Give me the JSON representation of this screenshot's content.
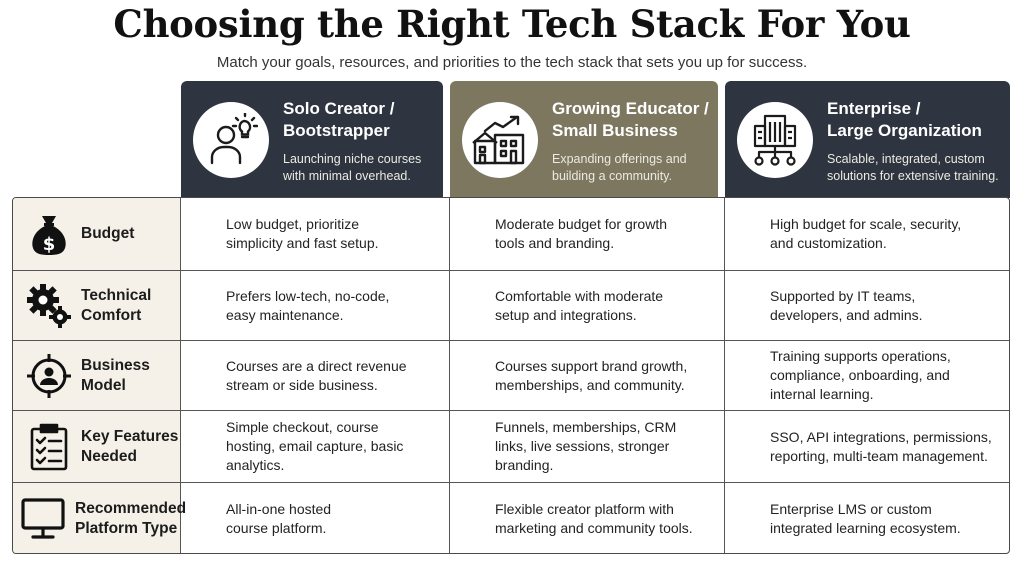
{
  "title": "Choosing the Right Tech Stack For You",
  "subtitle": "Match your goals, resources, and priorities to the tech stack that sets you up for success.",
  "colors": {
    "header_dark": "#2e3540",
    "header_olive": "#7d7760",
    "label_bg": "#f5f1e8"
  },
  "columns": [
    {
      "icon": "person-lightbulb-icon",
      "title": "Solo Creator /\nBootstrapper",
      "desc": "Launching niche courses\nwith minimal overhead."
    },
    {
      "icon": "buildings-growth-icon",
      "title": "Growing Educator /\nSmall Business",
      "desc": "Expanding offerings and\nbuilding a community."
    },
    {
      "icon": "office-tower-network-icon",
      "title": "Enterprise /\nLarge Organization",
      "desc": "Scalable, integrated, custom\nsolutions for extensive training."
    }
  ],
  "rows": [
    {
      "icon": "money-bag-icon",
      "label": "Budget",
      "cells": [
        "Low budget, prioritize\nsimplicity and fast setup.",
        "Moderate budget for growth\ntools and branding.",
        "High budget for scale, security,\nand customization."
      ]
    },
    {
      "icon": "gears-icon",
      "label": "Technical\nComfort",
      "cells": [
        "Prefers low-tech, no-code,\neasy maintenance.",
        "Comfortable with moderate\nsetup and integrations.",
        "Supported by IT teams,\ndevelopers, and admins."
      ]
    },
    {
      "icon": "target-person-icon",
      "label": "Business\nModel",
      "cells": [
        "Courses are a direct revenue\nstream or side business.",
        "Courses support brand growth,\nmemberships, and community.",
        "Training supports operations,\ncompliance, onboarding, and\ninternal learning."
      ]
    },
    {
      "icon": "clipboard-checklist-icon",
      "label": "Key Features\nNeeded",
      "cells": [
        "Simple checkout, course\nhosting, email capture, basic\nanalytics.",
        "Funnels, memberships, CRM\nlinks, live sessions, stronger\nbranding.",
        "SSO, API integrations, permissions,\nreporting, multi-team management."
      ]
    },
    {
      "icon": "monitor-icon",
      "label": "Recommended\nPlatform Type",
      "cells": [
        "All-in-one hosted\ncourse platform.",
        "Flexible creator platform with\nmarketing and community tools.",
        "Enterprise LMS or custom\nintegrated learning ecosystem."
      ]
    }
  ]
}
